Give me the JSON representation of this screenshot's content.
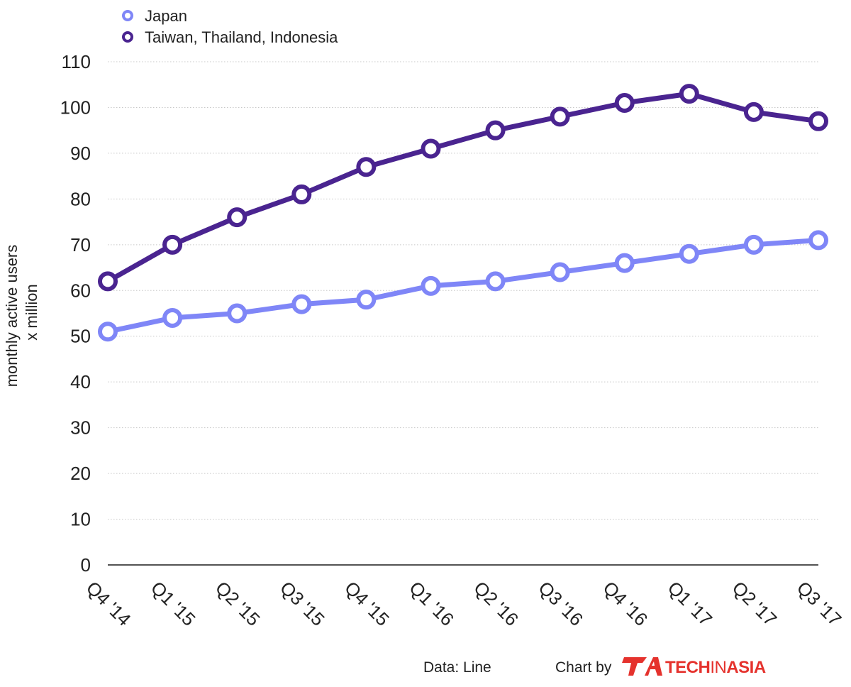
{
  "chart_data": {
    "type": "line",
    "categories": [
      "Q4 '14",
      "Q1 '15",
      "Q2 '15",
      "Q3 '15",
      "Q4 '15",
      "Q1 '16",
      "Q2 '16",
      "Q3 '16",
      "Q4 '16",
      "Q1 '17",
      "Q2 '17",
      "Q3 '17"
    ],
    "series": [
      {
        "name": "Japan",
        "color": "#7f86f7",
        "values": [
          51,
          54,
          55,
          57,
          58,
          61,
          62,
          64,
          66,
          68,
          70,
          71
        ]
      },
      {
        "name": "Taiwan, Thailand, Indonesia",
        "color": "#4a2490",
        "values": [
          62,
          70,
          76,
          81,
          87,
          91,
          95,
          98,
          101,
          103,
          99,
          97
        ]
      }
    ],
    "yticks": [
      0,
      10,
      20,
      30,
      40,
      50,
      60,
      70,
      80,
      90,
      100,
      110
    ],
    "ylim": [
      0,
      110
    ],
    "ylabel_lines": [
      "monthly active users",
      "x million"
    ],
    "xlabel": "",
    "grid": true,
    "legend_position": "top-left"
  },
  "footer": {
    "source": "Data: Line",
    "credit": "Chart by",
    "brand_part1": "TECH",
    "brand_part2": "IN",
    "brand_part3": "ASIA",
    "brand_color": "#e5322d"
  }
}
